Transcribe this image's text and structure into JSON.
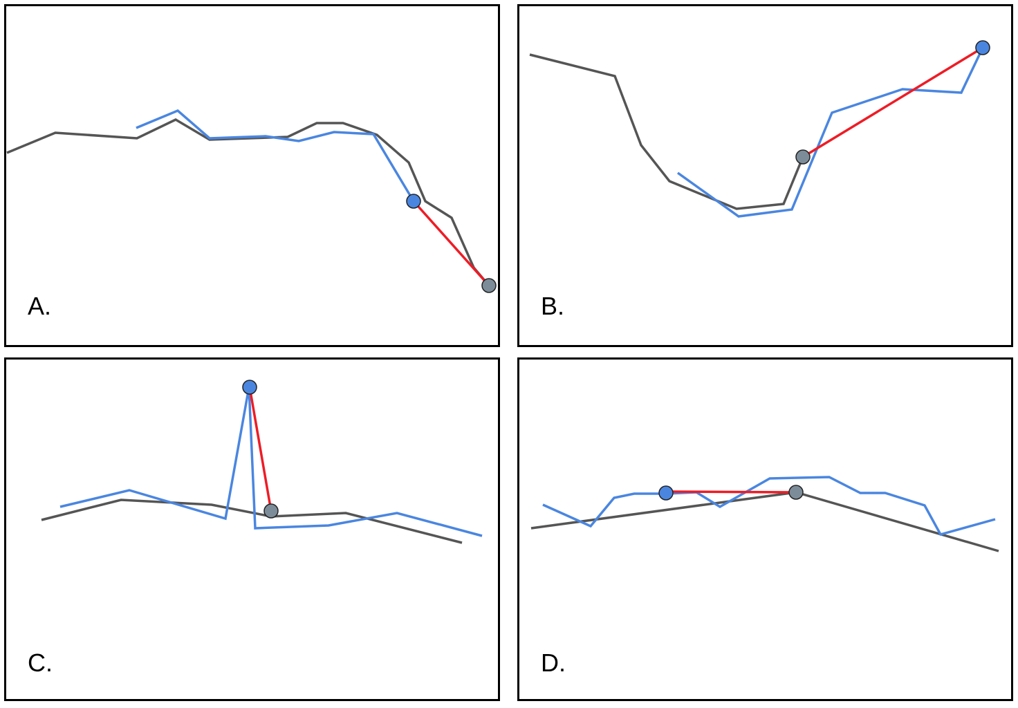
{
  "panels": [
    {
      "id": "a",
      "label": "A."
    },
    {
      "id": "b",
      "label": "B."
    },
    {
      "id": "c",
      "label": "C."
    },
    {
      "id": "d",
      "label": "D."
    }
  ],
  "colors": {
    "reference_line": "#555555",
    "measured_line": "#4a86e0",
    "connector": "#ee1c25",
    "measured_point": "#4a86e0",
    "reference_point": "#7d8c99",
    "border": "#000000"
  }
}
